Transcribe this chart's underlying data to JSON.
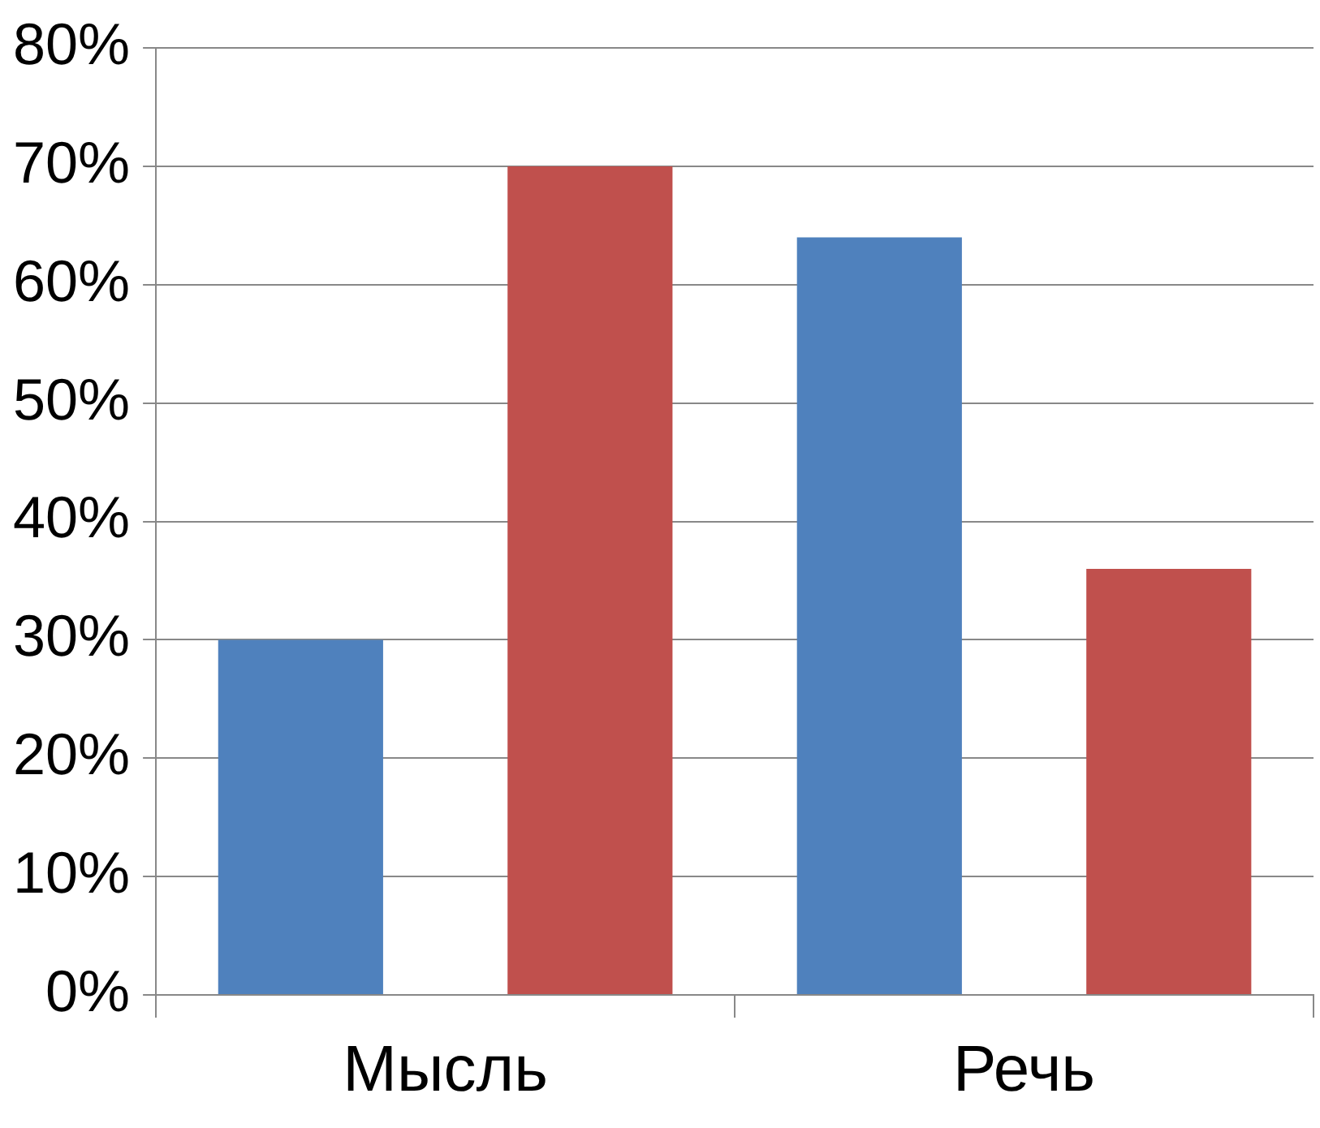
{
  "chart_data": {
    "type": "bar",
    "categories": [
      "Мысль",
      "Речь"
    ],
    "series": [
      {
        "color": "#4f81bd",
        "values": [
          30,
          64
        ]
      },
      {
        "color": "#c0504d",
        "values": [
          70,
          36
        ]
      }
    ],
    "ylim": [
      0,
      80
    ],
    "yticks": [
      {
        "value": 0,
        "label": "0%"
      },
      {
        "value": 10,
        "label": "10%"
      },
      {
        "value": 20,
        "label": "20%"
      },
      {
        "value": 30,
        "label": "30%"
      },
      {
        "value": 40,
        "label": "40%"
      },
      {
        "value": 50,
        "label": "50%"
      },
      {
        "value": 60,
        "label": "60%"
      },
      {
        "value": 70,
        "label": "70%"
      },
      {
        "value": 80,
        "label": "80%"
      }
    ],
    "grid": "y",
    "legend": false
  }
}
